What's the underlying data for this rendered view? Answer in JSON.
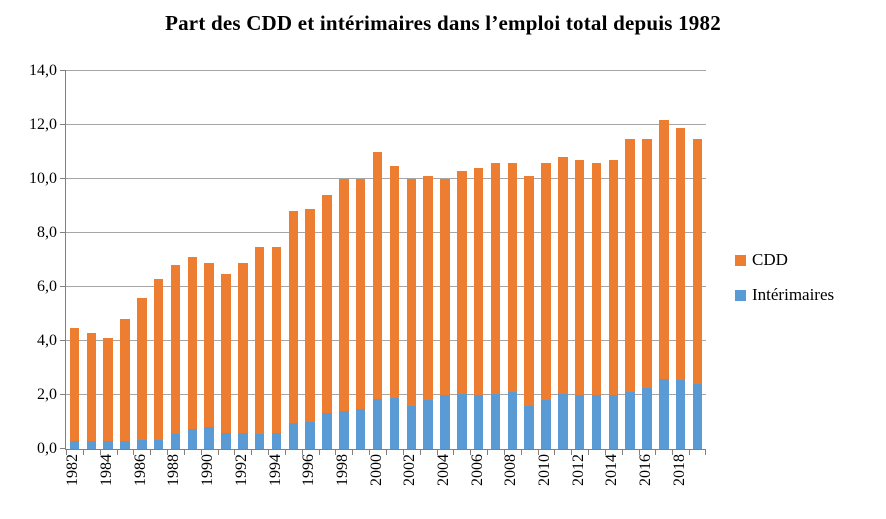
{
  "chart_data": {
    "type": "bar",
    "stacked": true,
    "title": "Part des CDD et intérimaires dans l’emploi total depuis 1982",
    "xlabel": "",
    "ylabel": "",
    "ylim": [
      0,
      14
    ],
    "ytick_step": 2,
    "ytick_labels": [
      "0,0",
      "2,0",
      "4,0",
      "6,0",
      "8,0",
      "10,0",
      "12,0",
      "14,0"
    ],
    "grid": true,
    "categories": [
      1982,
      1983,
      1984,
      1985,
      1986,
      1987,
      1988,
      1989,
      1990,
      1991,
      1992,
      1993,
      1994,
      1995,
      1996,
      1997,
      1998,
      1999,
      2000,
      2001,
      2002,
      2003,
      2004,
      2005,
      2006,
      2007,
      2008,
      2009,
      2010,
      2011,
      2012,
      2013,
      2014,
      2015,
      2016,
      2017,
      2018,
      2019
    ],
    "xtick_label_every": 2,
    "xtick_labels_shown": [
      "1982",
      "1984",
      "1986",
      "1988",
      "1990",
      "1992",
      "1994",
      "1996",
      "1998",
      "2000",
      "2002",
      "2004",
      "2006",
      "2008",
      "2010",
      "2012",
      "2014",
      "2016",
      "2018"
    ],
    "series": [
      {
        "name": "Intérimaires",
        "color": "#5b9bd5",
        "values": [
          0.3,
          0.3,
          0.3,
          0.3,
          0.35,
          0.35,
          0.55,
          0.75,
          0.8,
          0.6,
          0.6,
          0.55,
          0.6,
          0.95,
          1.0,
          1.35,
          1.4,
          1.5,
          1.85,
          1.9,
          1.6,
          1.8,
          2.0,
          2.05,
          2.0,
          2.05,
          2.1,
          1.6,
          1.8,
          2.05,
          2.0,
          2.0,
          2.0,
          2.1,
          2.25,
          2.6,
          2.55,
          2.4
        ]
      },
      {
        "name": "CDD",
        "color": "#ed7d31",
        "values": [
          4.2,
          4.0,
          3.8,
          4.5,
          5.25,
          5.95,
          6.25,
          6.35,
          6.1,
          5.9,
          6.3,
          6.95,
          6.9,
          7.85,
          7.9,
          8.05,
          8.6,
          8.5,
          9.15,
          8.6,
          8.4,
          8.3,
          8.0,
          8.25,
          8.4,
          8.55,
          8.5,
          8.5,
          8.8,
          8.75,
          8.7,
          8.6,
          8.7,
          9.4,
          9.25,
          9.6,
          9.35,
          9.1
        ]
      }
    ],
    "totals": [
      4.5,
      4.3,
      4.1,
      4.8,
      5.6,
      6.3,
      6.8,
      7.1,
      6.9,
      6.5,
      6.9,
      7.5,
      7.5,
      8.8,
      8.9,
      9.4,
      10.0,
      10.0,
      11.0,
      10.5,
      10.0,
      10.1,
      10.0,
      10.3,
      10.4,
      10.6,
      10.6,
      10.1,
      10.6,
      10.8,
      10.7,
      10.6,
      10.7,
      11.5,
      11.5,
      12.2,
      11.9,
      11.5
    ],
    "legend": {
      "position": "right",
      "entries": [
        {
          "label": "CDD",
          "color": "#ed7d31"
        },
        {
          "label": "Intérimaires",
          "color": "#5b9bd5"
        }
      ]
    },
    "colors": {
      "gridline": "#a6a6a6",
      "axis": "#808080",
      "background": "#ffffff",
      "text": "#000000"
    }
  }
}
